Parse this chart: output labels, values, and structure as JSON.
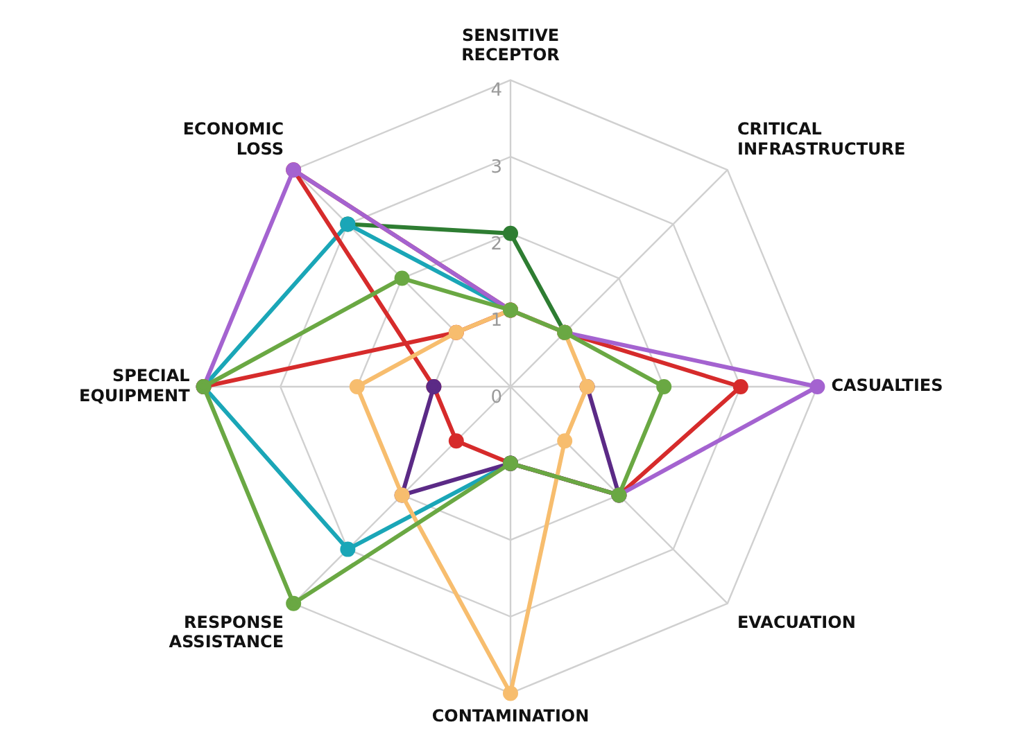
{
  "chart_data": {
    "type": "radar",
    "categories": [
      "SENSITIVE RECEPTOR",
      "CRITICAL INFRASTRUCTURE",
      "CASUALTIES",
      "EVACUATION",
      "CONTAMINATION",
      "RESPONSE ASSISTANCE",
      "SPECIAL EQUIPMENT",
      "ECONOMIC LOSS"
    ],
    "ylim": [
      0,
      4
    ],
    "yticks": [
      0,
      1,
      2,
      3,
      4
    ],
    "grid": true,
    "legend": false,
    "marker": "circle",
    "line_style": "solid",
    "series": [
      {
        "color": "#6aa843",
        "values": [
          1,
          1,
          2,
          2,
          1,
          4,
          4,
          2
        ]
      },
      {
        "color": "#f7bd6e",
        "values": [
          1,
          1,
          1,
          1,
          4,
          2,
          2,
          1
        ]
      },
      {
        "color": "#d62b2b",
        "values": [
          1,
          null,
          null,
          null,
          null,
          null,
          4,
          1
        ]
      },
      {
        "color": "#a463d0",
        "values": [
          1,
          1,
          4,
          2,
          null,
          null,
          4,
          4
        ]
      },
      {
        "color": "#5b2a86",
        "values": [
          null,
          null,
          1,
          2,
          1,
          2,
          1,
          null
        ]
      },
      {
        "color": "#d62b2b",
        "values": [
          1,
          1,
          3,
          2,
          1,
          1,
          1,
          4
        ]
      },
      {
        "color": "#1aa6b7",
        "values": [
          1,
          null,
          null,
          null,
          1,
          3,
          4,
          3
        ]
      },
      {
        "color": "#2e7d32",
        "values": [
          2,
          1,
          null,
          null,
          null,
          null,
          null,
          3
        ]
      }
    ]
  }
}
